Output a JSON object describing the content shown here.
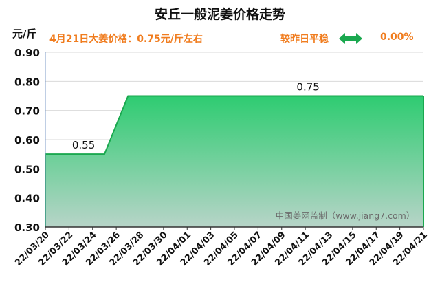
{
  "header": {
    "title": "安丘一般泥姜价格走势",
    "unit": "元/斤",
    "price_label": "4月21日大姜价格：0.75元/斤左右",
    "compare_label": "较昨日平稳",
    "change_pct": "0.00%",
    "compare_icon": "double-arrow-icon"
  },
  "colors": {
    "accent": "#f07c1e",
    "fill_top": "#2ecc71",
    "fill_bottom": "#b7d4c8",
    "line": "#1aa84f",
    "arrow": "#1aa84f"
  },
  "chart_data": {
    "type": "area",
    "title": "安丘一般泥姜价格走势",
    "ylabel": "元/斤",
    "xlabel": "",
    "ylim": [
      0.3,
      0.9
    ],
    "yticks": [
      "0.30",
      "0.40",
      "0.50",
      "0.60",
      "0.70",
      "0.80",
      "0.90"
    ],
    "x": [
      "22/03/20",
      "22/03/21",
      "22/03/22",
      "22/03/23",
      "22/03/24",
      "22/03/25",
      "22/03/26",
      "22/03/27",
      "22/03/28",
      "22/03/29",
      "22/03/30",
      "22/03/31",
      "22/04/01",
      "22/04/02",
      "22/04/03",
      "22/04/04",
      "22/04/05",
      "22/04/06",
      "22/04/07",
      "22/04/08",
      "22/04/09",
      "22/04/10",
      "22/04/11",
      "22/04/12",
      "22/04/13",
      "22/04/14",
      "22/04/15",
      "22/04/16",
      "22/04/17",
      "22/04/18",
      "22/04/19",
      "22/04/20",
      "22/04/21"
    ],
    "xtick_labels": [
      "22/03/20",
      "22/03/22",
      "22/03/24",
      "22/03/26",
      "22/03/28",
      "22/03/30",
      "22/04/01",
      "22/04/03",
      "22/04/05",
      "22/04/07",
      "22/04/09",
      "22/04/11",
      "22/04/13",
      "22/04/15",
      "22/04/17",
      "22/04/19",
      "22/04/21"
    ],
    "series": [
      {
        "values": [
          0.55,
          0.55,
          0.55,
          0.55,
          0.55,
          0.55,
          0.65,
          0.75,
          0.75,
          0.75,
          0.75,
          0.75,
          0.75,
          0.75,
          0.75,
          0.75,
          0.75,
          0.75,
          0.75,
          0.75,
          0.75,
          0.75,
          0.75,
          0.75,
          0.75,
          0.75,
          0.75,
          0.75,
          0.75,
          0.75,
          0.75,
          0.75,
          0.75
        ]
      }
    ],
    "annotations": [
      {
        "text": "0.55",
        "x": "22/03/23",
        "y": 0.55
      },
      {
        "text": "0.75",
        "x": "22/04/11",
        "y": 0.75
      }
    ],
    "watermark": "中国姜网监制（www.jiang7.com）",
    "grid": true,
    "legend": "none"
  }
}
